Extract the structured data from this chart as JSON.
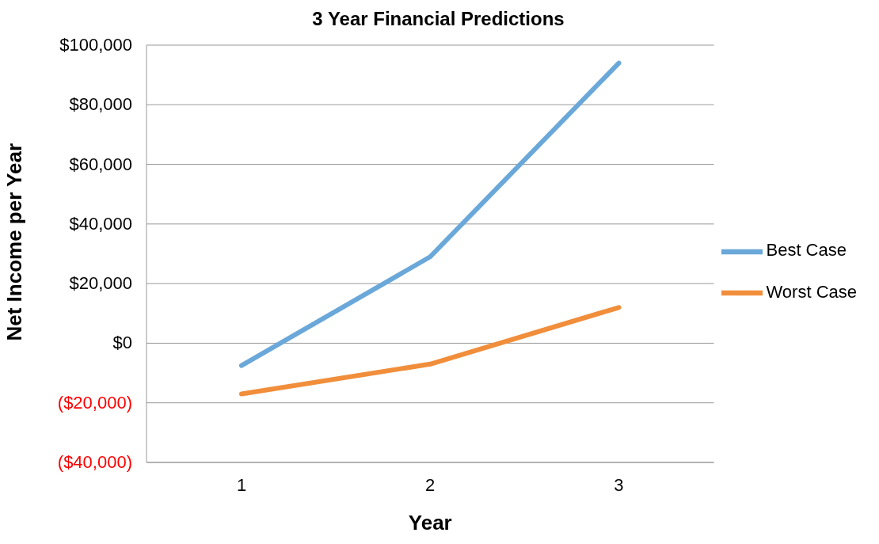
{
  "chart_data": {
    "type": "line",
    "title": "3 Year Financial Predictions",
    "xlabel": "Year",
    "ylabel": "Net Income per Year",
    "categories": [
      "1",
      "2",
      "3"
    ],
    "series": [
      {
        "name": "Best Case",
        "color": "#6aa8da",
        "values": [
          -7500,
          29000,
          94000
        ]
      },
      {
        "name": "Worst Case",
        "color": "#f08e3c",
        "values": [
          -17000,
          -7000,
          12000
        ]
      }
    ],
    "ylim": [
      -40000,
      100000
    ],
    "yticks": [
      {
        "value": -40000,
        "label": "($40,000)"
      },
      {
        "value": -20000,
        "label": "($20,000)"
      },
      {
        "value": 0,
        "label": "$0"
      },
      {
        "value": 20000,
        "label": "$20,000"
      },
      {
        "value": 40000,
        "label": "$40,000"
      },
      {
        "value": 60000,
        "label": "$60,000"
      },
      {
        "value": 80000,
        "label": "$80,000"
      },
      {
        "value": 100000,
        "label": "$100,000"
      }
    ],
    "grid": "y",
    "legend": "right",
    "marker": "none",
    "line_style": "solid"
  }
}
